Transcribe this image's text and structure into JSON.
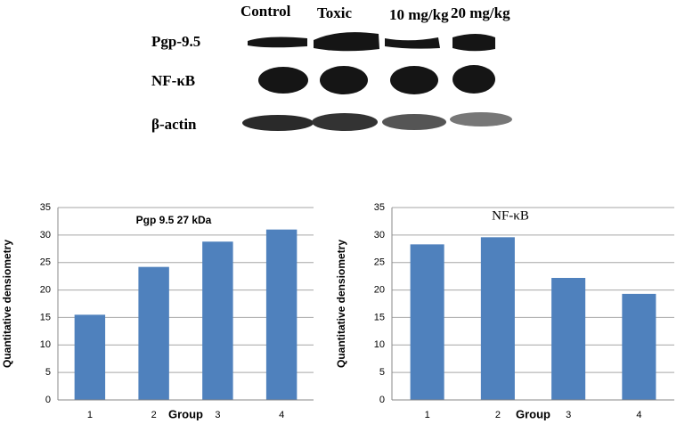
{
  "blot": {
    "columns": [
      "Control",
      "Toxic",
      "10 mg/kg",
      "20 mg/kg"
    ],
    "rows": [
      "Pgp-9.5",
      "NF-κB",
      "β-actin"
    ]
  },
  "chart_data": [
    {
      "type": "bar",
      "title": "Pgp 9.5 27 kDa",
      "x_label": "Group",
      "y_label": "Quantitative densiometry",
      "categories": [
        "1",
        "2",
        "3",
        "4"
      ],
      "values": [
        15.5,
        24.2,
        28.8,
        31
      ],
      "color": "#4f81bd",
      "ylim": [
        0,
        35
      ],
      "yticks": [
        0,
        5,
        10,
        15,
        20,
        25,
        30,
        35
      ],
      "grid": true
    },
    {
      "type": "bar",
      "title": "NF-κB",
      "x_label": "Group",
      "y_label": "Quantitative densiometry",
      "categories": [
        "1",
        "2",
        "3",
        "4"
      ],
      "values": [
        28.3,
        29.6,
        22.2,
        19.3
      ],
      "color": "#4f81bd",
      "ylim": [
        0,
        35
      ],
      "yticks": [
        0,
        5,
        10,
        15,
        20,
        25,
        30,
        35
      ],
      "grid": true
    }
  ]
}
